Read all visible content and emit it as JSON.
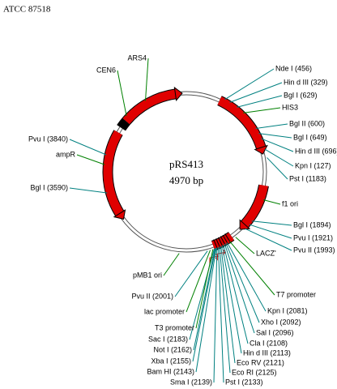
{
  "header": {
    "title": "ATCC 87518"
  },
  "plasmid": {
    "name": "pRS413",
    "size": "4970 bp"
  },
  "labels": [
    "Nde I (456)",
    "Hin d III (329)",
    "Bgl I (629)",
    "HIS3",
    "Bgl II (600)",
    "Bgl I (649)",
    "Hin d III (696)",
    "Kpn I (127)",
    "Pst I (1183)",
    "f1 ori",
    "Bgl I (1894)",
    "Pvu I (1921)",
    "Pvu II (1993)",
    "LACZ'",
    "T7 promoter",
    "Kpn I (2081)",
    "Xho I (2092)",
    "Sal I (2096)",
    "Cla I (2108)",
    "Hin d III (2113)",
    "Eco RV (2121)",
    "Eco RI (2125)",
    "Pst I (2133)",
    "Sma I (2139)",
    "Bam HI (2143)",
    "Xba I (2155)",
    "Not I (2162)",
    "Sac I (2183)",
    "T3 promoter",
    "lac promoter",
    "Pvu II (2001)",
    "pMB1 ori",
    "Bgl I (3590)",
    "ampR",
    "Pvu I (3840)",
    "CEN6",
    "ARS4"
  ]
}
